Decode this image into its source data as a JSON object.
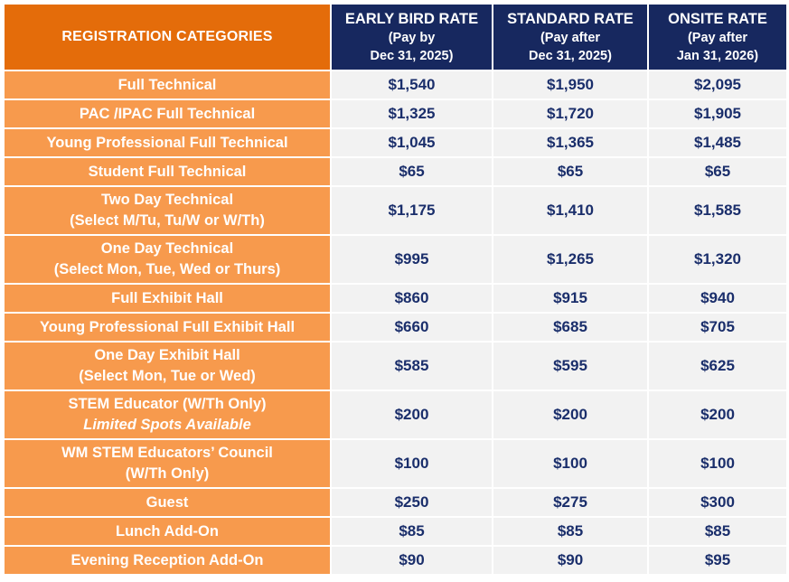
{
  "header": {
    "category": "REGISTRATION CATEGORIES",
    "columns": [
      {
        "title": "EARLY BIRD RATE",
        "note1": "(Pay by",
        "note2": "Dec 31, 2025)"
      },
      {
        "title": "STANDARD RATE",
        "note1": "(Pay after",
        "note2": "Dec 31, 2025)"
      },
      {
        "title": "ONSITE RATE",
        "note1": "(Pay after",
        "note2": "Jan 31, 2026)"
      }
    ]
  },
  "rows": [
    {
      "line1": "Full Technical",
      "line2": "",
      "note": "",
      "early": "$1,540",
      "standard": "$1,950",
      "onsite": "$2,095"
    },
    {
      "line1": "PAC /IPAC Full Technical",
      "line2": "",
      "note": "",
      "early": "$1,325",
      "standard": "$1,720",
      "onsite": "$1,905"
    },
    {
      "line1": "Young Professional Full Technical",
      "line2": "",
      "note": "",
      "early": "$1,045",
      "standard": "$1,365",
      "onsite": "$1,485"
    },
    {
      "line1": "Student Full Technical",
      "line2": "",
      "note": "",
      "early": "$65",
      "standard": "$65",
      "onsite": "$65"
    },
    {
      "line1": "Two Day Technical",
      "line2": "(Select M/Tu, Tu/W or W/Th)",
      "note": "",
      "early": "$1,175",
      "standard": "$1,410",
      "onsite": "$1,585"
    },
    {
      "line1": "One Day Technical",
      "line2": "(Select Mon, Tue, Wed or Thurs)",
      "note": "",
      "early": "$995",
      "standard": "$1,265",
      "onsite": "$1,320"
    },
    {
      "line1": "Full Exhibit Hall",
      "line2": "",
      "note": "",
      "early": "$860",
      "standard": "$915",
      "onsite": "$940"
    },
    {
      "line1": "Young Professional Full Exhibit Hall",
      "line2": "",
      "note": "",
      "early": "$660",
      "standard": "$685",
      "onsite": "$705"
    },
    {
      "line1": "One Day Exhibit Hall",
      "line2": "(Select Mon, Tue or Wed)",
      "note": "",
      "early": "$585",
      "standard": "$595",
      "onsite": "$625"
    },
    {
      "line1": "STEM Educator (W/Th Only)",
      "line2": "",
      "note": "Limited Spots Available",
      "early": "$200",
      "standard": "$200",
      "onsite": "$200"
    },
    {
      "line1": "WM STEM Educators’ Council",
      "line2": "(W/Th Only)",
      "note": "",
      "early": "$100",
      "standard": "$100",
      "onsite": "$100"
    },
    {
      "line1": "Guest",
      "line2": "",
      "note": "",
      "early": "$250",
      "standard": "$275",
      "onsite": "$300"
    },
    {
      "line1": "Lunch Add-On",
      "line2": "",
      "note": "",
      "early": "$85",
      "standard": "$85",
      "onsite": "$85"
    },
    {
      "line1": "Evening Reception Add-On",
      "line2": "",
      "note": "",
      "early": "$90",
      "standard": "$90",
      "onsite": "$95"
    }
  ]
}
